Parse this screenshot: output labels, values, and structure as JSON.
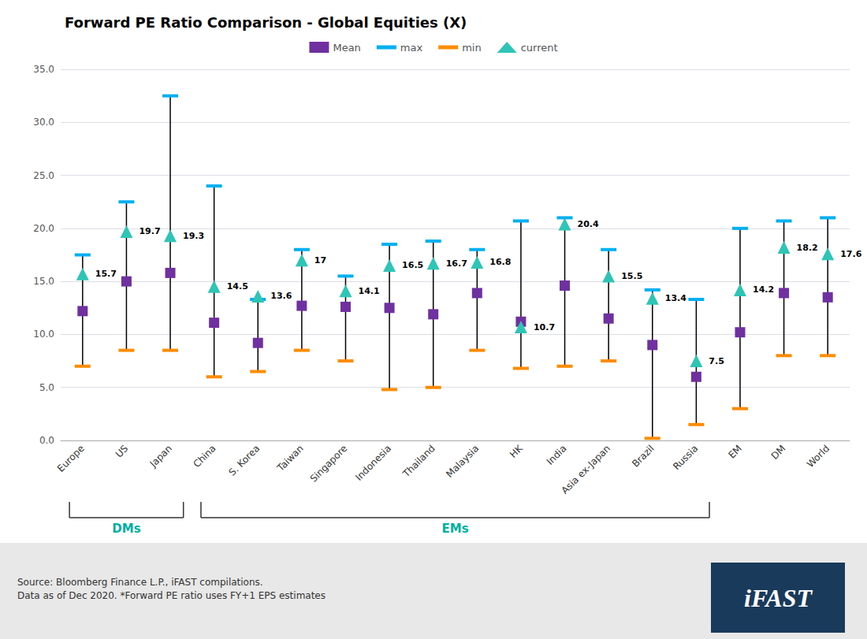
{
  "chart_data": {
    "type": "range",
    "title": "Forward PE Ratio Comparison - Global Equities (X)",
    "categories": [
      "Europe",
      "US",
      "Japan",
      "China",
      "S. Korea",
      "Taiwan",
      "Singapore",
      "Indonesia",
      "Thailand",
      "Malaysia",
      "HK",
      "India",
      "Asia ex-Japan",
      "Brazil",
      "Russia",
      "EM",
      "DM",
      "World"
    ],
    "series": [
      {
        "name": "Mean",
        "type": "scatter",
        "marker": "square",
        "color": "#7030A0",
        "values": [
          12.2,
          15.0,
          15.8,
          11.1,
          9.2,
          12.7,
          12.6,
          12.5,
          11.9,
          13.9,
          11.2,
          14.6,
          11.5,
          9.0,
          6.0,
          10.2,
          13.9,
          13.5
        ]
      },
      {
        "name": "max",
        "type": "scatter",
        "marker": "hline",
        "color": "#00B0F0",
        "values": [
          17.5,
          22.5,
          32.5,
          24.0,
          13.3,
          18.0,
          15.5,
          18.5,
          18.8,
          18.0,
          20.7,
          21.0,
          18.0,
          14.2,
          13.3,
          20.0,
          20.7,
          21.0
        ]
      },
      {
        "name": "min",
        "type": "scatter",
        "marker": "hline",
        "color": "#FF8C00",
        "values": [
          7.0,
          8.5,
          8.5,
          6.0,
          6.5,
          8.5,
          7.5,
          4.8,
          5.0,
          8.5,
          6.8,
          7.0,
          7.5,
          0.2,
          1.5,
          3.0,
          8.0,
          8.0
        ]
      },
      {
        "name": "current",
        "type": "scatter",
        "marker": "triangle",
        "color": "#2EC4B6",
        "data_labels": true,
        "values": [
          15.7,
          19.7,
          19.3,
          14.5,
          13.6,
          17.0,
          14.1,
          16.5,
          16.7,
          16.8,
          10.7,
          20.4,
          15.5,
          13.4,
          7.5,
          14.2,
          18.2,
          17.6
        ]
      }
    ],
    "ylim": [
      0.0,
      35.0
    ],
    "yticks": [
      {
        "value": 0.0,
        "label": "0.0"
      },
      {
        "value": 5.0,
        "label": "5.0"
      },
      {
        "value": 10.0,
        "label": "10.0"
      },
      {
        "value": 15.0,
        "label": "15.0"
      },
      {
        "value": 20.0,
        "label": "20.0"
      },
      {
        "value": 25.0,
        "label": "25.0"
      },
      {
        "value": 30.0,
        "label": "30.0"
      },
      {
        "value": 35.0,
        "label": "35.0"
      }
    ],
    "grid": true,
    "legend": "top",
    "groups": [
      {
        "label": "DMs",
        "color": "#00B0A0",
        "from": "Europe",
        "to": "Japan"
      },
      {
        "label": "EMs",
        "color": "#00B0A0",
        "from": "China",
        "to": "Russia"
      }
    ],
    "source": "Source: Bloomberg Finance L.P., iFAST compilations.\nData as of Dec 2020. *Forward PE ratio uses FY+1 EPS estimates",
    "footer_color": "#E8E8E8",
    "logo": {
      "text": "iFAST",
      "color": "#1A3A5C"
    }
  }
}
